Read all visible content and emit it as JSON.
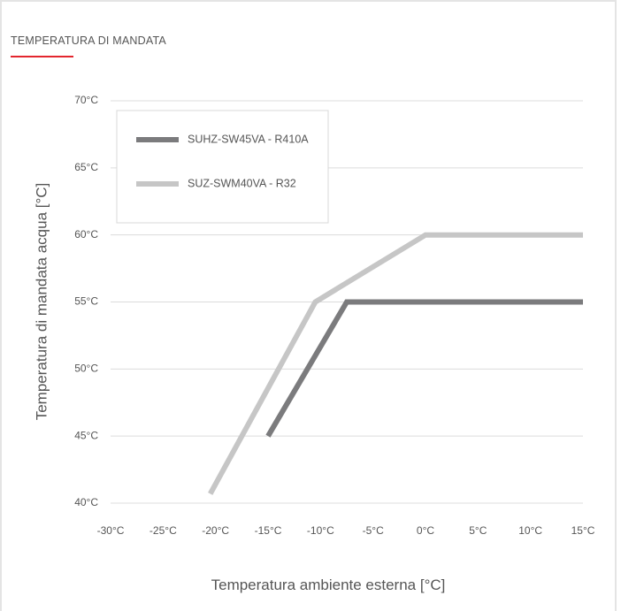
{
  "header": {
    "title": "TEMPERATURA DI MANDATA",
    "accent_color": "#e3262e"
  },
  "chart_data": {
    "type": "line",
    "xlabel": "Temperatura ambiente esterna [°C]",
    "ylabel": "Temperatura di mandata acqua [°C]",
    "xlim": [
      -30,
      15
    ],
    "ylim": [
      40,
      70
    ],
    "x_ticks": [
      {
        "value": -30,
        "label": "-30°C"
      },
      {
        "value": -25,
        "label": "-25°C"
      },
      {
        "value": -20,
        "label": "-20°C"
      },
      {
        "value": -15,
        "label": "-15°C"
      },
      {
        "value": -10,
        "label": "-10°C"
      },
      {
        "value": -5,
        "label": "-5°C"
      },
      {
        "value": 0,
        "label": "0°C"
      },
      {
        "value": 5,
        "label": "5°C"
      },
      {
        "value": 10,
        "label": "10°C"
      },
      {
        "value": 15,
        "label": "15°C"
      }
    ],
    "y_ticks": [
      {
        "value": 70,
        "label": "70°C"
      },
      {
        "value": 65,
        "label": "65°C"
      },
      {
        "value": 60,
        "label": "60°C"
      },
      {
        "value": 55,
        "label": "55°C"
      },
      {
        "value": 50,
        "label": "50°C"
      },
      {
        "value": 45,
        "label": "45°C"
      },
      {
        "value": 40,
        "label": "40°C"
      }
    ],
    "grid": "horizontal",
    "legend_position": "top-left",
    "series": [
      {
        "name": "SUHZ-SW45VA - R410A",
        "color": "#7b7b7d",
        "points": [
          [
            -15,
            45
          ],
          [
            -7.5,
            55
          ],
          [
            15,
            55
          ]
        ]
      },
      {
        "name": "SUZ-SWM40VA - R32",
        "color": "#c6c6c6",
        "points": [
          [
            -20.5,
            40.7
          ],
          [
            -10.5,
            55
          ],
          [
            0,
            60
          ],
          [
            15,
            60
          ]
        ]
      }
    ]
  }
}
